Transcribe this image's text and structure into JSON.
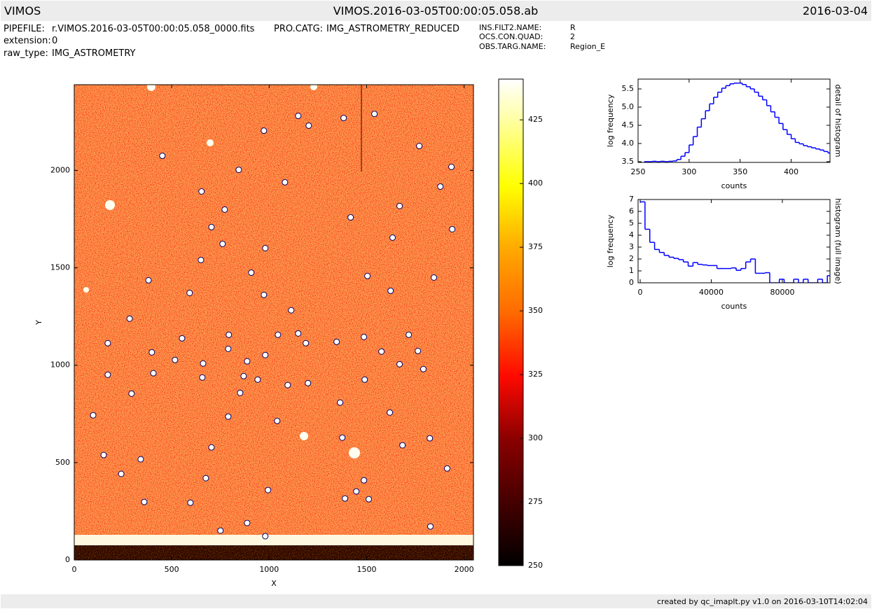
{
  "header": {
    "left": "VIMOS",
    "title": "VIMOS.2016-03-05T00:00:05.058.ab",
    "right": "2016-03-04"
  },
  "info": {
    "left": [
      {
        "key": "PIPEFILE:",
        "value": "r.VIMOS.2016-03-05T00:00:05.058_0000.fits"
      },
      {
        "key": "extension:",
        "value": "0"
      },
      {
        "key": "raw_type:",
        "value": "IMG_ASTROMETRY"
      }
    ],
    "middle": [
      {
        "key": "PRO.CATG:",
        "value": "IMG_ASTROMETRY_REDUCED"
      }
    ],
    "right": [
      {
        "key": "INS.FILT2.NAME:",
        "value": "R"
      },
      {
        "key": "OCS.CON.QUAD:",
        "value": "2"
      },
      {
        "key": "OBS.TARG.NAME:",
        "value": "Region_E"
      }
    ]
  },
  "footer": "created by qc_imaplt.py v1.0 on 2016-03-10T14:02:04",
  "chart_data": [
    {
      "type": "image",
      "xlabel": "X",
      "ylabel": "Y",
      "xlim": [
        0,
        2048
      ],
      "ylim": [
        0,
        2440
      ],
      "xticks": [
        0,
        500,
        1000,
        1500,
        2000
      ],
      "yticks": [
        0,
        500,
        1000,
        1500,
        2000
      ],
      "markers": {
        "x": [
          1149,
          1382,
          1540,
          1203,
          973,
          1770,
          452,
          1935,
          844,
          1081,
          653,
          1878,
          772,
          1669,
          1418,
          704,
          1939,
          1633,
          761,
          980,
          650,
          908,
          1504,
          381,
          1845,
          592,
          1623,
          973,
          1113,
          284,
          1149,
          793,
          1045,
          1716,
          553,
          1486,
          1346,
          172,
          1188,
          790,
          1763,
          398,
          1576,
          517,
          887,
          980,
          661,
          1669,
          1791,
          406,
          172,
          869,
          657,
          941,
          1490,
          1095,
          1199,
          294,
          851,
          1364,
          97,
          1619,
          790,
          1041,
          1375,
          1824,
          704,
          1684,
          151,
          341,
          1913,
          241,
          675,
          1486,
          994,
          1447,
          1389,
          1511,
          359,
          596,
          887,
          1827,
          750,
          980
        ],
        "y": [
          2280,
          2269,
          2290,
          2230,
          2204,
          2125,
          2075,
          2018,
          2003,
          1939,
          1892,
          1917,
          1799,
          1817,
          1759,
          1709,
          1698,
          1655,
          1623,
          1601,
          1540,
          1475,
          1458,
          1436,
          1450,
          1371,
          1382,
          1361,
          1282,
          1239,
          1163,
          1156,
          1156,
          1156,
          1138,
          1145,
          1120,
          1113,
          1113,
          1084,
          1073,
          1066,
          1070,
          1027,
          1020,
          1052,
          1009,
          1005,
          980,
          959,
          951,
          944,
          937,
          926,
          926,
          898,
          908,
          854,
          858,
          808,
          743,
          757,
          736,
          714,
          628,
          625,
          578,
          589,
          539,
          517,
          470,
          442,
          420,
          409,
          359,
          352,
          316,
          312,
          298,
          294,
          190,
          172,
          151,
          122
        ]
      },
      "colorbar": {
        "lim": [
          250,
          441
        ],
        "ticks": [
          250,
          275,
          300,
          325,
          350,
          375,
          400,
          425
        ]
      }
    },
    {
      "type": "histogram",
      "xlabel": "counts",
      "ylabel": "log frequency",
      "side_label": "detail of histogram",
      "color": "#0000ff",
      "xlim": [
        250,
        438
      ],
      "ylim": [
        3.48,
        5.77
      ],
      "xticks": [
        250,
        300,
        350,
        400
      ],
      "yticks": [
        3.5,
        {
          "value": 4,
          "label": "4.0"
        },
        4.5,
        {
          "value": 5,
          "label": "5.0"
        },
        5.5
      ],
      "bins": [
        256,
        260,
        264,
        268,
        272,
        276,
        280,
        284,
        288,
        292,
        296,
        300,
        304,
        308,
        312,
        316,
        320,
        324,
        328,
        332,
        336,
        340,
        344,
        348,
        352,
        356,
        360,
        364,
        368,
        372,
        376,
        380,
        384,
        388,
        392,
        396,
        400,
        404,
        408,
        412,
        416,
        420,
        424,
        428,
        432,
        436,
        440
      ],
      "values": [
        3.5,
        3.5,
        3.51,
        3.5,
        3.51,
        3.5,
        3.51,
        3.52,
        3.56,
        3.65,
        3.75,
        3.96,
        4.19,
        4.45,
        4.68,
        4.9,
        5.09,
        5.27,
        5.41,
        5.52,
        5.59,
        5.64,
        5.66,
        5.66,
        5.62,
        5.56,
        5.5,
        5.41,
        5.3,
        5.2,
        5.04,
        4.87,
        4.72,
        4.55,
        4.38,
        4.25,
        4.13,
        4.03,
        3.99,
        3.94,
        3.91,
        3.88,
        3.85,
        3.82,
        3.78,
        3.74
      ]
    },
    {
      "type": "histogram",
      "xlabel": "counts",
      "ylabel": "log frequency",
      "side_label": "histogram (full image)",
      "color": "#0000ff",
      "xlim": [
        -1200,
        106800
      ],
      "ylim": [
        0,
        7
      ],
      "xticks": [
        0,
        40000,
        80000
      ],
      "yticks": [
        0,
        1,
        2,
        3,
        4,
        5,
        6,
        7
      ],
      "bins": [
        0,
        2700,
        5400,
        8100,
        10800,
        13500,
        16200,
        18900,
        21600,
        24300,
        27000,
        29700,
        32400,
        35100,
        37800,
        40500,
        43200,
        45900,
        48600,
        51300,
        54000,
        56700,
        59400,
        62100,
        64800,
        67500,
        70200,
        72900,
        75600,
        78300,
        81000,
        83700,
        86400,
        89100,
        91800,
        94500,
        97200,
        99900,
        102600,
        105300,
        108000
      ],
      "values": [
        6.8,
        4.5,
        3.4,
        2.8,
        2.55,
        2.3,
        2.15,
        2.05,
        1.95,
        1.75,
        1.4,
        1.7,
        1.55,
        1.5,
        1.45,
        1.45,
        1.2,
        1.2,
        1.2,
        1.25,
        1.05,
        1.2,
        1.75,
        2.0,
        0.8,
        0.8,
        0.85,
        0,
        0,
        0.3,
        0,
        0,
        0.3,
        0,
        0.3,
        0,
        0,
        0.3,
        0,
        0.6
      ]
    }
  ]
}
